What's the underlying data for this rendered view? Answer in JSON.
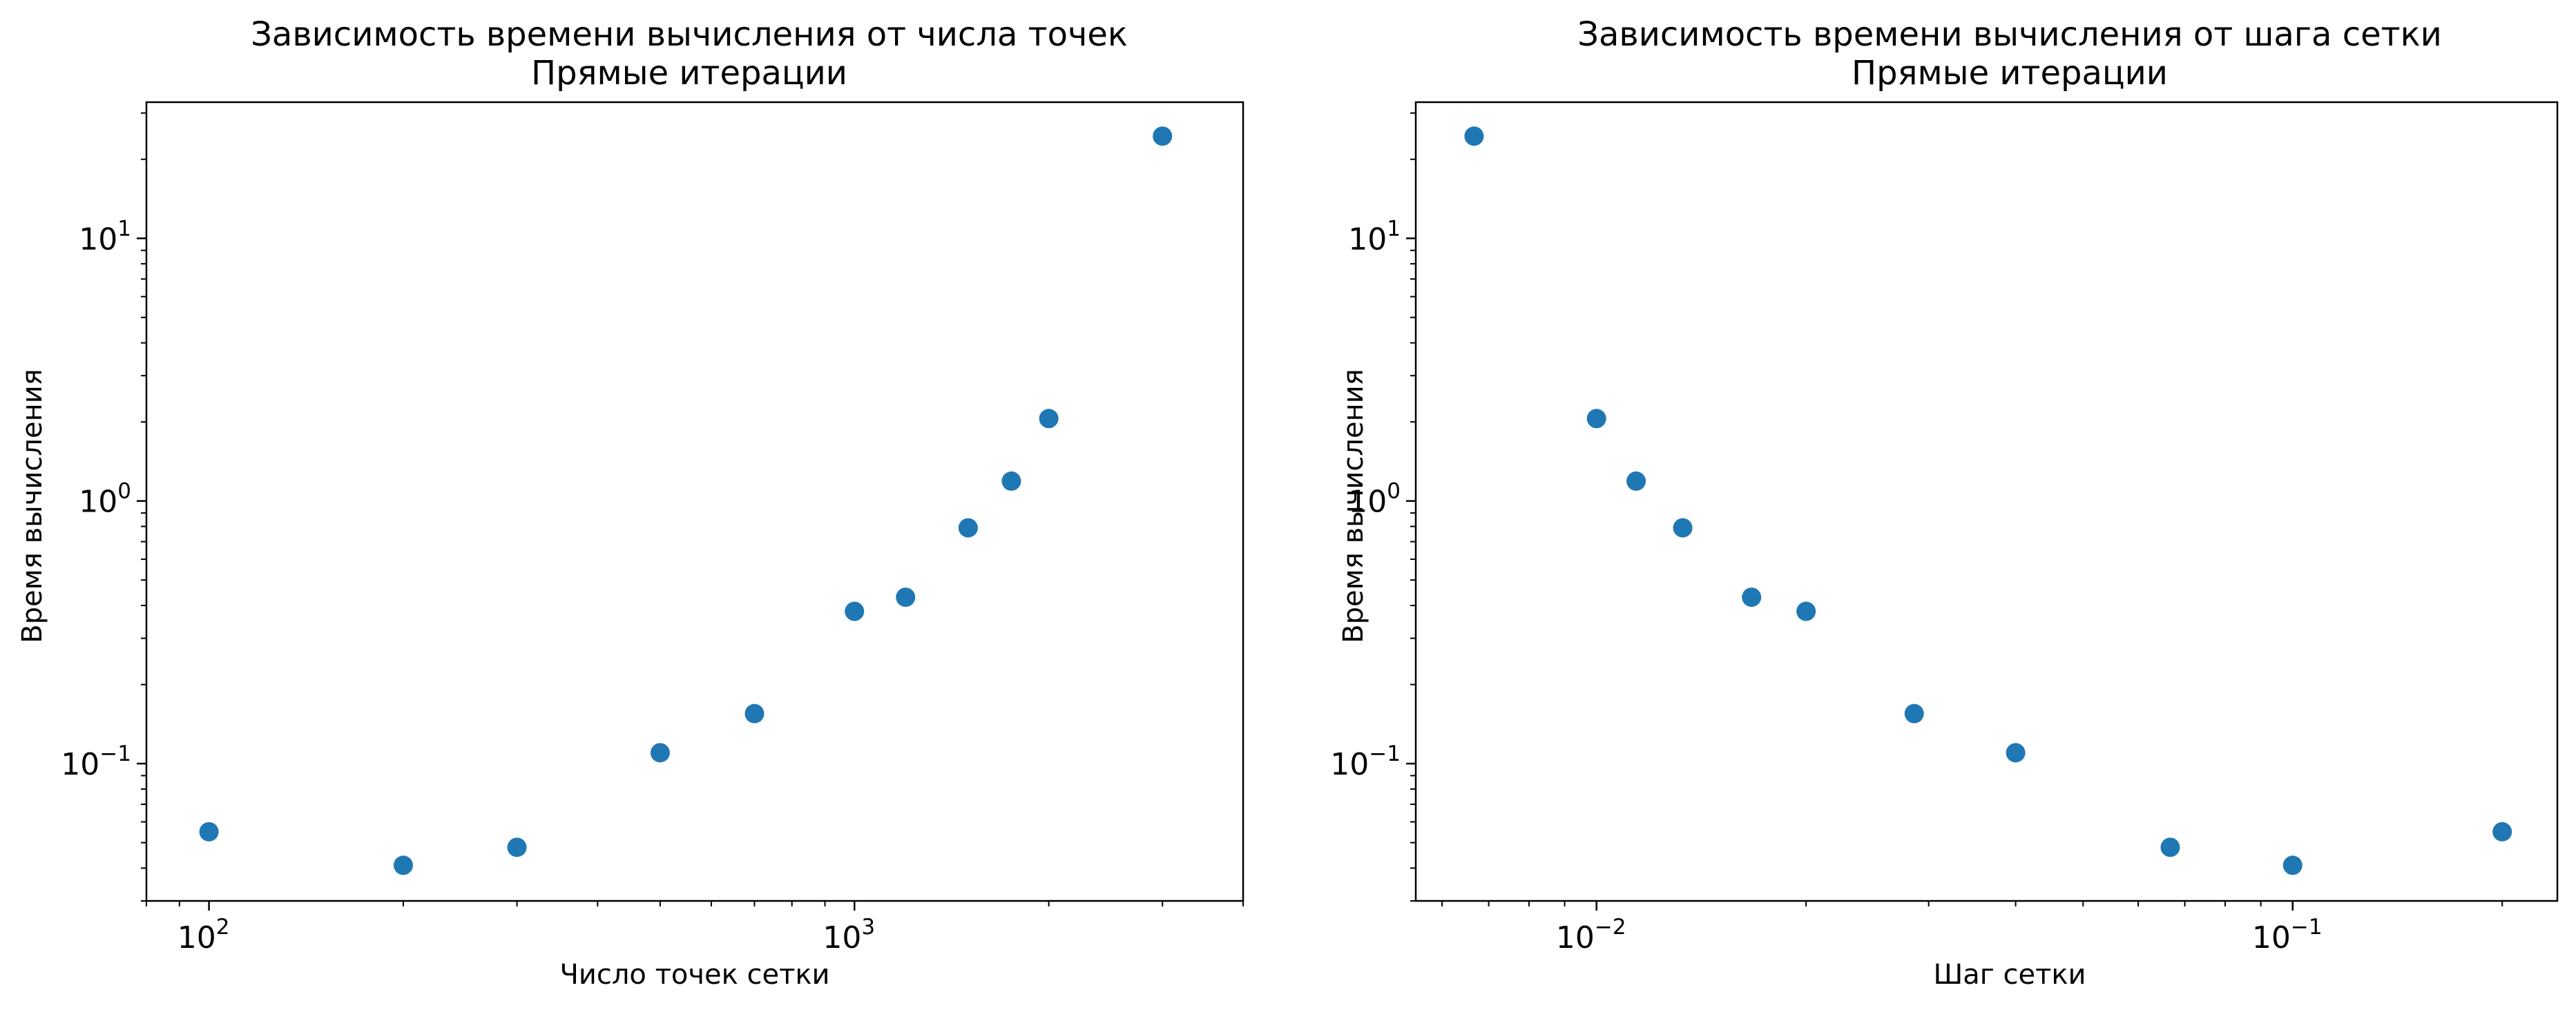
{
  "figure": {
    "marker_color": "#1f77b4"
  },
  "chart_data": [
    {
      "type": "scatter",
      "title": "Зависимость времени вычисления от числа точек",
      "subtitle": "Прямые итерации",
      "xlabel": "Число точек сетки",
      "ylabel": "Время вычисления",
      "xscale": "log",
      "yscale": "log",
      "xlim": [
        80,
        4000
      ],
      "ylim": [
        0.03,
        33
      ],
      "x_tick_labels": [
        {
          "value": 100,
          "base": "10",
          "exp": "2"
        },
        {
          "value": 1000,
          "base": "10",
          "exp": "3"
        }
      ],
      "y_tick_labels": [
        {
          "value": 0.1,
          "base": "10",
          "exp": "−1"
        },
        {
          "value": 1,
          "base": "10",
          "exp": "0"
        },
        {
          "value": 10,
          "base": "10",
          "exp": "1"
        }
      ],
      "grid": false,
      "x": [
        100,
        200,
        300,
        500,
        700,
        1000,
        1200,
        1500,
        1750,
        2000,
        3000
      ],
      "y": [
        0.055,
        0.041,
        0.048,
        0.11,
        0.155,
        0.38,
        0.43,
        0.79,
        1.19,
        2.06,
        24.5
      ]
    },
    {
      "type": "scatter",
      "title": "Зависимость времени вычисления от шага сетки",
      "subtitle": "Прямые итерации",
      "xlabel": "Шаг сетки",
      "ylabel": "Время вычисления",
      "xscale": "log",
      "yscale": "log",
      "xlim": [
        0.0055,
        0.24
      ],
      "ylim": [
        0.03,
        33
      ],
      "x_tick_labels": [
        {
          "value": 0.01,
          "base": "10",
          "exp": "−2"
        },
        {
          "value": 0.1,
          "base": "10",
          "exp": "−1"
        }
      ],
      "y_tick_labels": [
        {
          "value": 0.1,
          "base": "10",
          "exp": "−1"
        },
        {
          "value": 1,
          "base": "10",
          "exp": "0"
        },
        {
          "value": 10,
          "base": "10",
          "exp": "1"
        }
      ],
      "grid": false,
      "x": [
        0.00667,
        0.01,
        0.0114,
        0.0133,
        0.0167,
        0.02,
        0.0286,
        0.04,
        0.0667,
        0.1,
        0.2
      ],
      "y": [
        24.5,
        2.06,
        1.19,
        0.79,
        0.43,
        0.38,
        0.155,
        0.11,
        0.048,
        0.041,
        0.055
      ]
    }
  ]
}
